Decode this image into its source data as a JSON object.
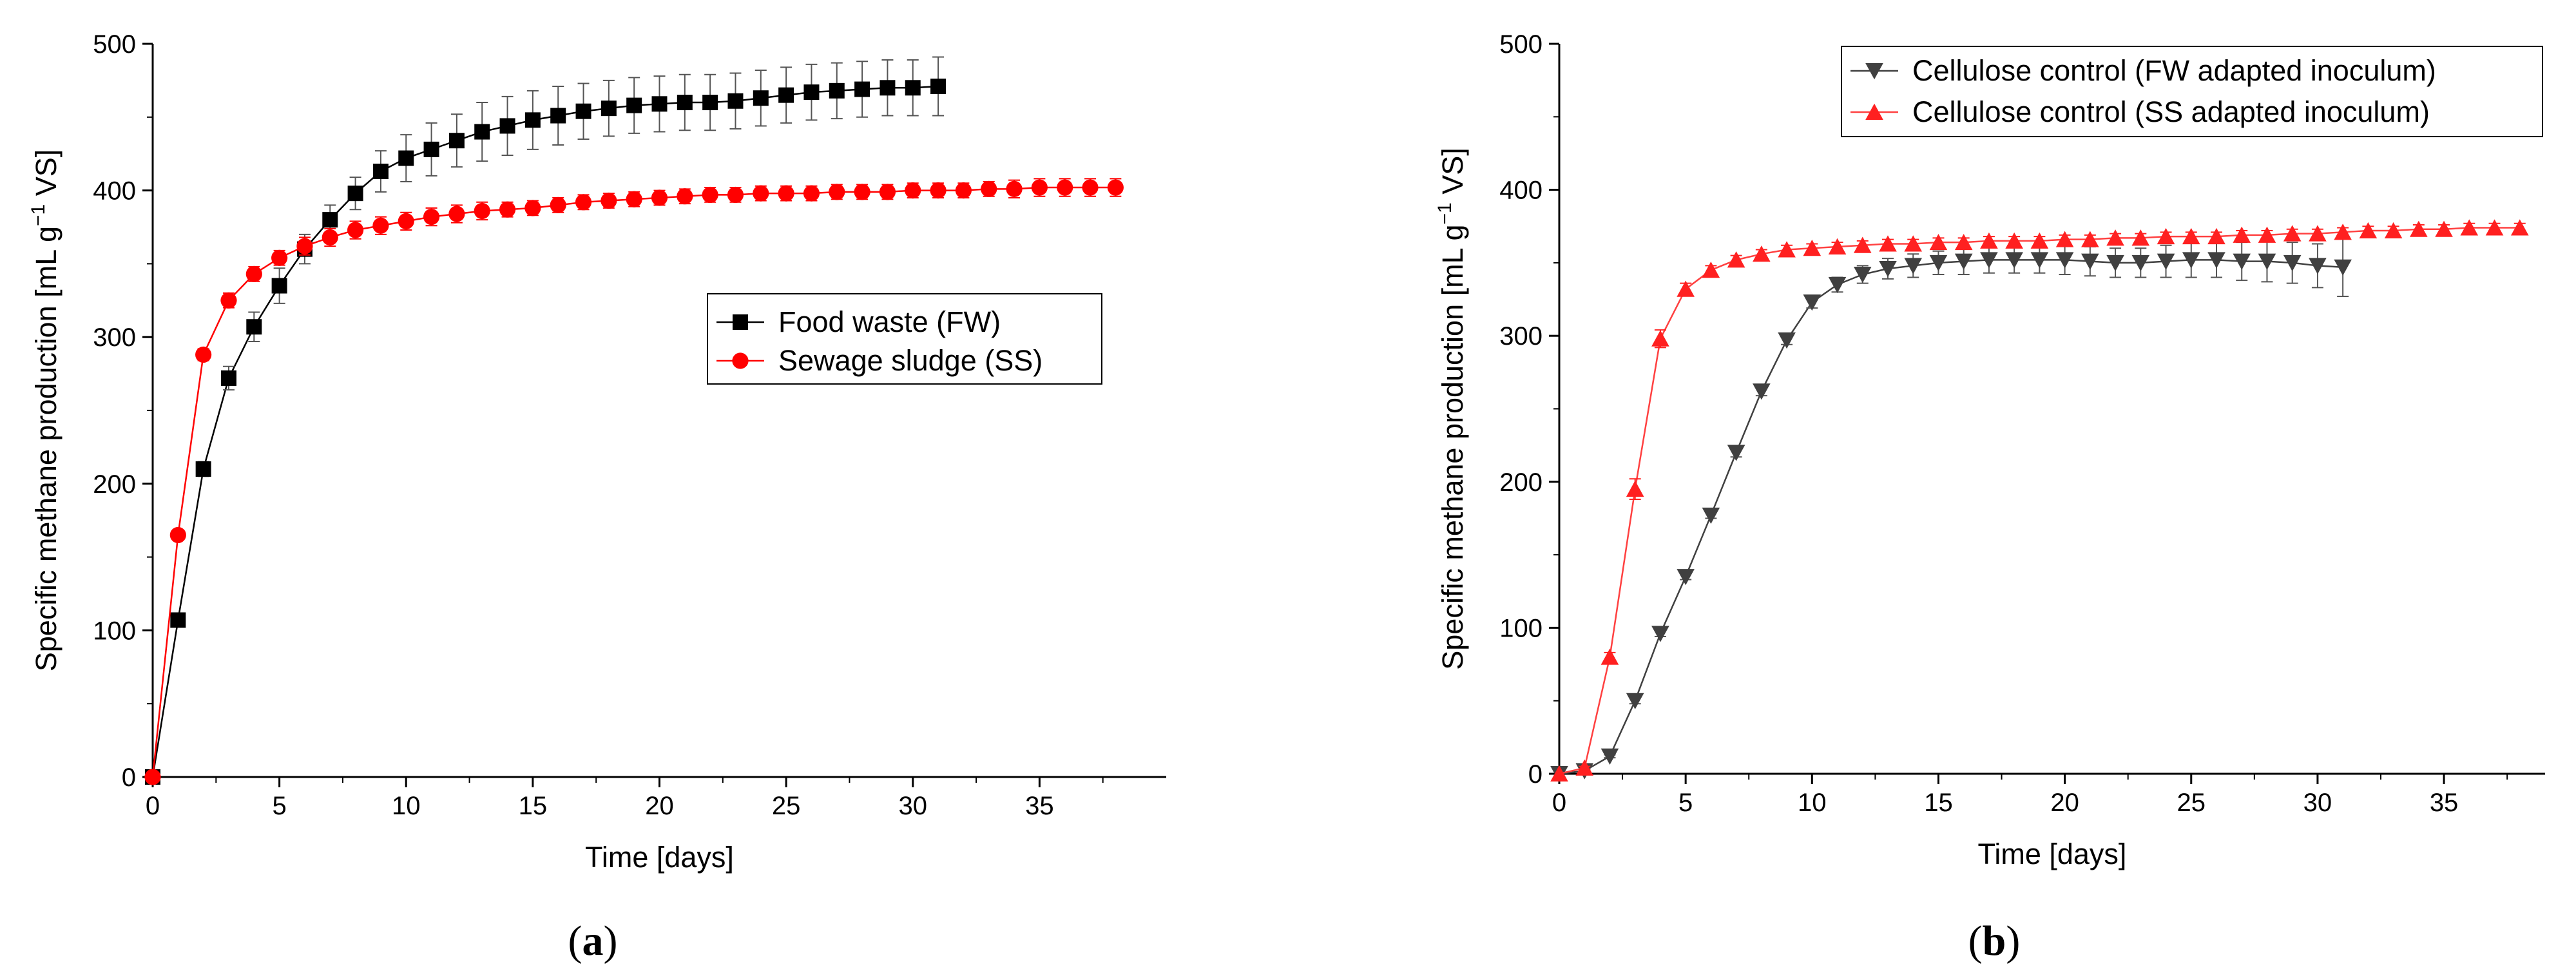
{
  "chart_data": [
    {
      "type": "line",
      "panel": "a",
      "xlabel": "Time [days]",
      "ylabel": "Specific methane production [mL g",
      "ylabel_sup": "−1",
      "ylabel_end": " VS]",
      "xlim": [
        0,
        40
      ],
      "ylim": [
        0,
        500
      ],
      "xticks": [
        0,
        5,
        10,
        15,
        20,
        25,
        30,
        35
      ],
      "yticks": [
        0,
        100,
        200,
        300,
        400,
        500
      ],
      "legend_position": "center-right",
      "series": [
        {
          "name": "Food waste (FW)",
          "color": "#000000",
          "line_color": "#000000",
          "marker": "square",
          "x": [
            0,
            1,
            2,
            3,
            4,
            5,
            6,
            7,
            8,
            9,
            10,
            11,
            12,
            13,
            14,
            15,
            16,
            17,
            18,
            19,
            20,
            21,
            22,
            23,
            24,
            25,
            26,
            27,
            28,
            29,
            30,
            31
          ],
          "values": [
            0,
            107,
            210,
            272,
            307,
            335,
            360,
            380,
            398,
            413,
            422,
            428,
            434,
            440,
            444,
            448,
            451,
            454,
            456,
            458,
            459,
            460,
            460,
            461,
            463,
            465,
            467,
            468,
            469,
            470,
            470,
            471
          ],
          "errors": [
            0,
            3,
            5,
            8,
            10,
            12,
            10,
            10,
            11,
            14,
            16,
            18,
            18,
            20,
            20,
            20,
            20,
            19,
            19,
            19,
            19,
            19,
            19,
            19,
            19,
            19,
            19,
            19,
            19,
            19,
            19,
            20
          ]
        },
        {
          "name": "Sewage sludge (SS)",
          "color": "#ff0000",
          "line_color": "#ff0000",
          "marker": "circle",
          "x": [
            0,
            1,
            2,
            3,
            4,
            5,
            6,
            7,
            8,
            9,
            10,
            11,
            12,
            13,
            14,
            15,
            16,
            17,
            18,
            19,
            20,
            21,
            22,
            23,
            24,
            25,
            26,
            27,
            28,
            29,
            30,
            31,
            32,
            33,
            34,
            35,
            36,
            37,
            38
          ],
          "values": [
            0,
            165,
            288,
            325,
            343,
            354,
            362,
            368,
            373,
            376,
            379,
            382,
            384,
            386,
            387,
            388,
            390,
            392,
            393,
            394,
            395,
            396,
            397,
            397,
            398,
            398,
            398,
            399,
            399,
            399,
            400,
            400,
            400,
            401,
            401,
            402,
            402,
            402,
            402
          ],
          "errors": [
            0,
            3,
            4,
            5,
            5,
            5,
            6,
            6,
            6,
            6,
            6,
            6,
            6,
            6,
            5,
            5,
            5,
            5,
            5,
            5,
            5,
            5,
            5,
            5,
            5,
            5,
            5,
            5,
            5,
            5,
            5,
            5,
            5,
            5,
            6,
            6,
            6,
            6,
            6
          ]
        }
      ]
    },
    {
      "type": "line",
      "panel": "b",
      "xlabel": "Time [days]",
      "ylabel": "Specific methane production [mL g",
      "ylabel_sup": "−1",
      "ylabel_end": " VS]",
      "xlim": [
        0,
        39
      ],
      "ylim": [
        0,
        500
      ],
      "xticks": [
        0,
        5,
        10,
        15,
        20,
        25,
        30,
        35
      ],
      "yticks": [
        0,
        100,
        200,
        300,
        400,
        500
      ],
      "legend_position": "top-right",
      "series": [
        {
          "name": "Cellulose control (FW adapted inoculum)",
          "color": "#404040",
          "line_color": "#404040",
          "marker": "triangle-down",
          "x": [
            0,
            1,
            2,
            3,
            4,
            5,
            6,
            7,
            8,
            9,
            10,
            11,
            12,
            13,
            14,
            15,
            16,
            17,
            18,
            19,
            20,
            21,
            22,
            23,
            24,
            25,
            26,
            27,
            28,
            29,
            30,
            31
          ],
          "values": [
            0,
            2,
            12,
            50,
            96,
            135,
            177,
            220,
            262,
            297,
            323,
            335,
            342,
            346,
            348,
            350,
            351,
            352,
            352,
            352,
            352,
            351,
            350,
            350,
            351,
            352,
            352,
            351,
            351,
            350,
            348,
            347
          ],
          "errors": [
            0,
            1,
            1,
            2,
            2,
            2,
            2,
            3,
            3,
            3,
            4,
            5,
            6,
            7,
            8,
            8,
            9,
            9,
            9,
            9,
            10,
            10,
            10,
            10,
            11,
            12,
            12,
            13,
            14,
            14,
            15,
            20
          ]
        },
        {
          "name": "Cellulose control (SS adapted inoculum)",
          "color": "#ff2020",
          "line_color": "#ff4040",
          "marker": "triangle-up",
          "x": [
            0,
            1,
            2,
            3,
            4,
            5,
            6,
            7,
            8,
            9,
            10,
            11,
            12,
            13,
            14,
            15,
            16,
            17,
            18,
            19,
            20,
            21,
            22,
            23,
            24,
            25,
            26,
            27,
            28,
            29,
            30,
            31,
            32,
            33,
            34,
            35,
            36,
            37,
            38
          ],
          "values": [
            0,
            4,
            80,
            195,
            298,
            332,
            345,
            352,
            356,
            359,
            360,
            361,
            362,
            363,
            363,
            364,
            364,
            365,
            365,
            365,
            366,
            366,
            367,
            367,
            368,
            368,
            368,
            369,
            369,
            370,
            370,
            371,
            372,
            372,
            373,
            373,
            374,
            374,
            374
          ],
          "errors": [
            0,
            1,
            3,
            7,
            6,
            4,
            3,
            3,
            3,
            3,
            3,
            3,
            3,
            3,
            3,
            3,
            3,
            3,
            3,
            3,
            3,
            3,
            3,
            3,
            3,
            3,
            3,
            3,
            3,
            3,
            3,
            3,
            3,
            3,
            3,
            3,
            3,
            3,
            3
          ]
        }
      ]
    }
  ]
}
